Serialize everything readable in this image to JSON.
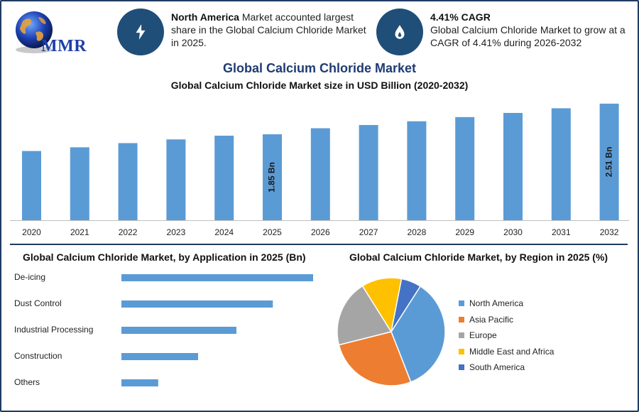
{
  "logo": {
    "text": "MMR"
  },
  "info_cards": [
    {
      "icon": "lightning-icon",
      "bold": "North America",
      "text": " Market accounted largest share in the Global Calcium Chloride Market in 2025."
    },
    {
      "icon": "drop-icon",
      "bold": "4.41% CAGR",
      "text": "Global Calcium Chloride Market to grow at a CAGR of 4.41% during 2026-2032"
    }
  ],
  "titles": {
    "main": "Global Calcium Chloride Market",
    "sub": "Global Calcium Chloride Market size in USD Billion (2020-2032)",
    "application": "Global Calcium Chloride Market, by Application in 2025 (Bn)",
    "region": "Global Calcium Chloride Market, by Region in 2025 (%)"
  },
  "chart_data": [
    {
      "type": "bar",
      "title": "Global Calcium Chloride Market size in USD Billion (2020-2032)",
      "categories": [
        "2020",
        "2021",
        "2022",
        "2023",
        "2024",
        "2025",
        "2026",
        "2027",
        "2028",
        "2029",
        "2030",
        "2031",
        "2032"
      ],
      "values": [
        1.49,
        1.57,
        1.66,
        1.74,
        1.82,
        1.85,
        1.98,
        2.05,
        2.13,
        2.22,
        2.31,
        2.41,
        2.51
      ],
      "data_labels": [
        {
          "category": "2025",
          "text": "1.85 Bn"
        },
        {
          "category": "2032",
          "text": "2.51 Bn"
        }
      ],
      "ylim": [
        0,
        2.6
      ],
      "color": "#5b9bd5"
    },
    {
      "type": "bar",
      "orientation": "horizontal",
      "title": "Global Calcium Chloride Market, by Application in 2025 (Bn)",
      "categories": [
        "De-icing",
        "Dust Control",
        "Industrial Processing",
        "Construction",
        "Others"
      ],
      "values": [
        0.5,
        0.395,
        0.3,
        0.2,
        0.096
      ],
      "xlim": [
        0,
        0.5
      ],
      "color": "#5b9bd5"
    },
    {
      "type": "pie",
      "title": "Global Calcium Chloride Market, by Region in 2025 (%)",
      "labels": [
        "North America",
        "Asia Pacific",
        "Europe",
        "Middle East and Africa",
        "South America"
      ],
      "values": [
        35,
        27,
        20,
        12,
        6
      ],
      "colors": [
        "#5b9bd5",
        "#ed7d31",
        "#a5a5a5",
        "#ffc000",
        "#4472c4"
      ],
      "legend": "right"
    }
  ]
}
